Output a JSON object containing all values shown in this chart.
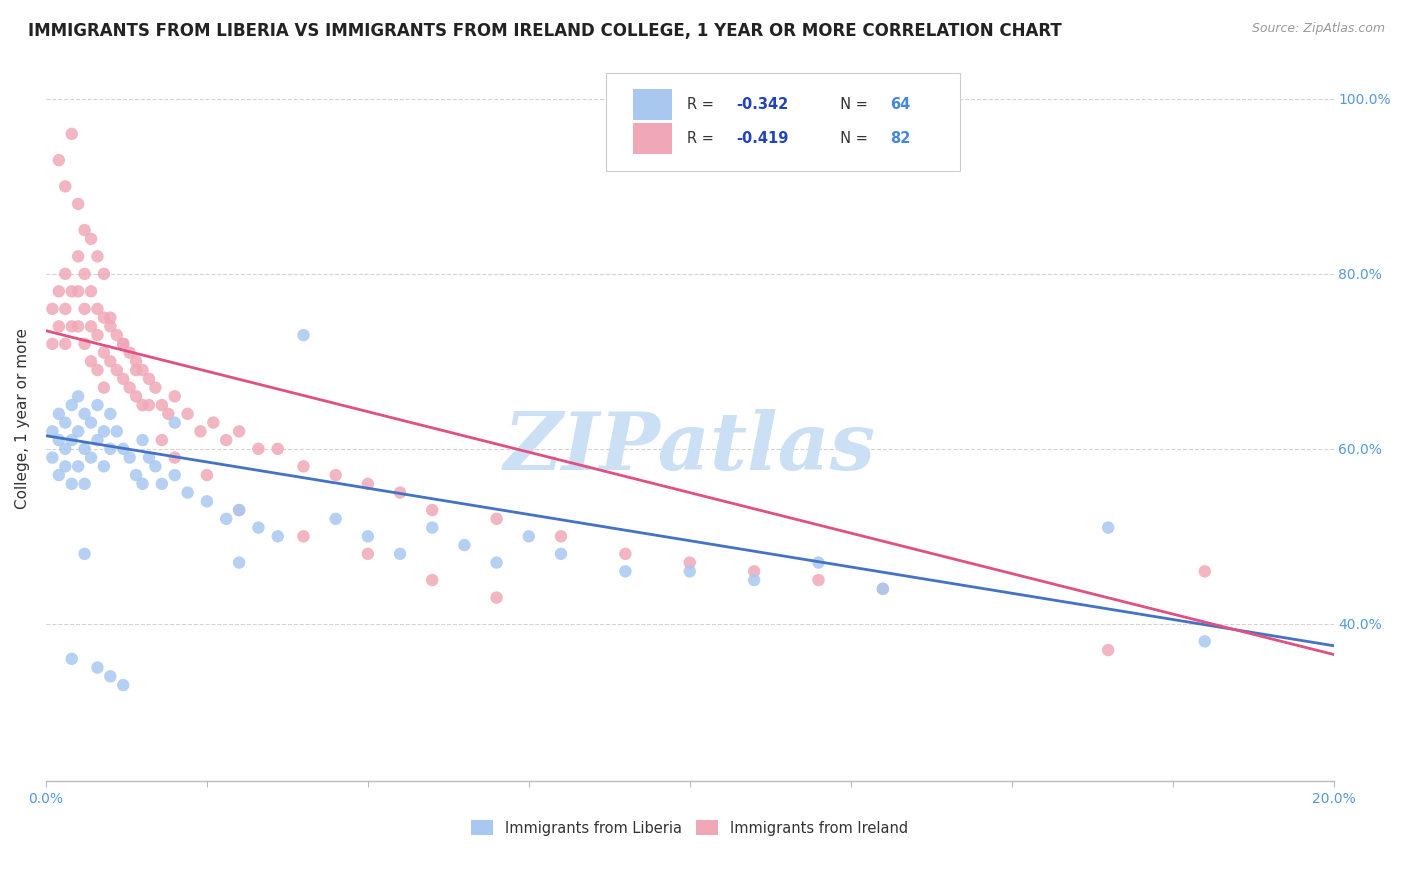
{
  "title": "IMMIGRANTS FROM LIBERIA VS IMMIGRANTS FROM IRELAND COLLEGE, 1 YEAR OR MORE CORRELATION CHART",
  "source_text": "Source: ZipAtlas.com",
  "ylabel": "College, 1 year or more",
  "xlim": [
    0.0,
    0.2
  ],
  "ylim": [
    0.22,
    1.05
  ],
  "liberia_color": "#a8c8f0",
  "ireland_color": "#f0a8b8",
  "liberia_line_color": "#4472c4",
  "ireland_line_color": "#e05080",
  "R_liberia": -0.342,
  "N_liberia": 64,
  "R_ireland": -0.419,
  "N_ireland": 82,
  "background_color": "#ffffff",
  "grid_color": "#d0d0d0",
  "watermark_text": "ZIPatlas",
  "watermark_color": "#cce0f5",
  "title_fontsize": 12,
  "axis_label_fontsize": 11,
  "tick_fontsize": 10,
  "liberia_line_x0": 0.0,
  "liberia_line_y0": 0.615,
  "liberia_line_x1": 0.2,
  "liberia_line_y1": 0.375,
  "ireland_line_x0": 0.0,
  "ireland_line_y0": 0.735,
  "ireland_line_x1": 0.2,
  "ireland_line_y1": 0.365,
  "liberia_scatter_x": [
    0.001,
    0.001,
    0.002,
    0.002,
    0.002,
    0.003,
    0.003,
    0.003,
    0.004,
    0.004,
    0.004,
    0.005,
    0.005,
    0.005,
    0.006,
    0.006,
    0.006,
    0.007,
    0.007,
    0.008,
    0.008,
    0.009,
    0.009,
    0.01,
    0.01,
    0.011,
    0.012,
    0.013,
    0.014,
    0.015,
    0.016,
    0.017,
    0.018,
    0.02,
    0.022,
    0.025,
    0.028,
    0.03,
    0.033,
    0.036,
    0.04,
    0.045,
    0.05,
    0.055,
    0.06,
    0.065,
    0.07,
    0.075,
    0.08,
    0.09,
    0.1,
    0.11,
    0.12,
    0.13,
    0.004,
    0.006,
    0.008,
    0.01,
    0.012,
    0.015,
    0.02,
    0.03,
    0.165,
    0.18
  ],
  "liberia_scatter_y": [
    0.62,
    0.59,
    0.61,
    0.64,
    0.57,
    0.63,
    0.6,
    0.58,
    0.65,
    0.61,
    0.56,
    0.66,
    0.62,
    0.58,
    0.64,
    0.6,
    0.56,
    0.63,
    0.59,
    0.65,
    0.61,
    0.62,
    0.58,
    0.64,
    0.6,
    0.62,
    0.6,
    0.59,
    0.57,
    0.61,
    0.59,
    0.58,
    0.56,
    0.57,
    0.55,
    0.54,
    0.52,
    0.53,
    0.51,
    0.5,
    0.73,
    0.52,
    0.5,
    0.48,
    0.51,
    0.49,
    0.47,
    0.5,
    0.48,
    0.46,
    0.46,
    0.45,
    0.47,
    0.44,
    0.36,
    0.48,
    0.35,
    0.34,
    0.33,
    0.56,
    0.63,
    0.47,
    0.51,
    0.38
  ],
  "ireland_scatter_x": [
    0.001,
    0.001,
    0.002,
    0.002,
    0.003,
    0.003,
    0.003,
    0.004,
    0.004,
    0.005,
    0.005,
    0.005,
    0.006,
    0.006,
    0.006,
    0.007,
    0.007,
    0.007,
    0.008,
    0.008,
    0.008,
    0.009,
    0.009,
    0.009,
    0.01,
    0.01,
    0.011,
    0.011,
    0.012,
    0.012,
    0.013,
    0.013,
    0.014,
    0.014,
    0.015,
    0.015,
    0.016,
    0.017,
    0.018,
    0.019,
    0.02,
    0.022,
    0.024,
    0.026,
    0.028,
    0.03,
    0.033,
    0.036,
    0.04,
    0.045,
    0.05,
    0.055,
    0.06,
    0.07,
    0.08,
    0.09,
    0.1,
    0.11,
    0.12,
    0.13,
    0.002,
    0.003,
    0.004,
    0.005,
    0.006,
    0.007,
    0.008,
    0.009,
    0.01,
    0.012,
    0.014,
    0.016,
    0.018,
    0.02,
    0.025,
    0.03,
    0.04,
    0.05,
    0.06,
    0.07,
    0.165,
    0.18
  ],
  "ireland_scatter_y": [
    0.76,
    0.72,
    0.78,
    0.74,
    0.8,
    0.76,
    0.72,
    0.78,
    0.74,
    0.82,
    0.78,
    0.74,
    0.8,
    0.76,
    0.72,
    0.78,
    0.74,
    0.7,
    0.76,
    0.73,
    0.69,
    0.75,
    0.71,
    0.67,
    0.74,
    0.7,
    0.73,
    0.69,
    0.72,
    0.68,
    0.71,
    0.67,
    0.7,
    0.66,
    0.69,
    0.65,
    0.68,
    0.67,
    0.65,
    0.64,
    0.66,
    0.64,
    0.62,
    0.63,
    0.61,
    0.62,
    0.6,
    0.6,
    0.58,
    0.57,
    0.56,
    0.55,
    0.53,
    0.52,
    0.5,
    0.48,
    0.47,
    0.46,
    0.45,
    0.44,
    0.93,
    0.9,
    0.96,
    0.88,
    0.85,
    0.84,
    0.82,
    0.8,
    0.75,
    0.72,
    0.69,
    0.65,
    0.61,
    0.59,
    0.57,
    0.53,
    0.5,
    0.48,
    0.45,
    0.43,
    0.37,
    0.46
  ]
}
